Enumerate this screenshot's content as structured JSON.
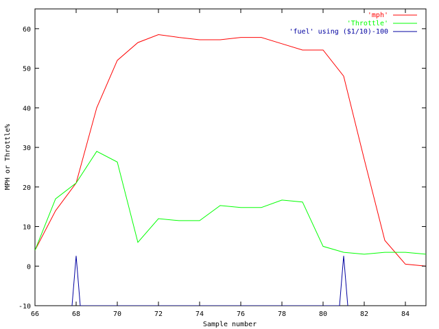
{
  "chart_data": {
    "type": "line",
    "title": "",
    "xlabel": "Sample number",
    "ylabel": "MPH or Throttle%",
    "xlim": [
      66,
      85
    ],
    "ylim": [
      -10,
      65
    ],
    "xticks": [
      66,
      68,
      70,
      72,
      74,
      76,
      78,
      80,
      82,
      84
    ],
    "yticks": [
      -10,
      0,
      10,
      20,
      30,
      40,
      50,
      60
    ],
    "grid": false,
    "legend_position": "top-right",
    "series": [
      {
        "name": "'mph'",
        "color": "#ff0000",
        "x": [
          66,
          67,
          68,
          69,
          70,
          71,
          72,
          73,
          74,
          75,
          76,
          77,
          78,
          79,
          80,
          81,
          82,
          83,
          84,
          85
        ],
        "y": [
          4,
          14,
          21,
          40,
          52,
          56.5,
          58.5,
          57.8,
          57.2,
          57.2,
          57.8,
          57.8,
          56.2,
          54.6,
          54.6,
          48,
          27,
          6.5,
          0.5,
          0
        ]
      },
      {
        "name": "'Throttle'",
        "color": "#00ff00",
        "x": [
          66,
          67,
          68,
          69,
          70,
          71,
          72,
          73,
          74,
          75,
          76,
          77,
          78,
          79,
          80,
          81,
          82,
          83,
          84,
          85
        ],
        "y": [
          4,
          17,
          21,
          29,
          26.3,
          6,
          12,
          11.5,
          11.5,
          15.3,
          14.8,
          14.8,
          16.7,
          16.2,
          5,
          3.5,
          3,
          3.5,
          3.5,
          3
        ]
      },
      {
        "name": "'fuel' using ($1/10)-100",
        "color": "#0000a0",
        "x": [
          67.8,
          68,
          68.2,
          80.8,
          81,
          81.2
        ],
        "y": [
          -10,
          2.6,
          -10,
          -10,
          2.6,
          -10
        ]
      }
    ]
  }
}
